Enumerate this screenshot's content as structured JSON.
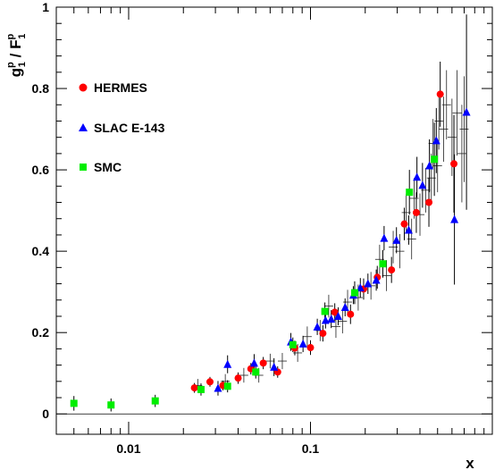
{
  "chart_data": {
    "type": "scatter",
    "title": "",
    "xlabel": "x",
    "ylabel": {
      "base_g": "g",
      "sup_g": "p",
      "sub_g": "1",
      "sep": " / ",
      "base_f": "F",
      "sup_f": "p",
      "sub_f": "1"
    },
    "xscale": "log",
    "xlim": [
      0.004,
      1.0
    ],
    "ylim": [
      -0.05,
      1.0
    ],
    "x_ticks": [
      {
        "value": 0.01,
        "label": "0.01"
      },
      {
        "value": 0.1,
        "label": "0.1"
      }
    ],
    "y_ticks": [
      {
        "value": 0,
        "label": "0"
      },
      {
        "value": 0.2,
        "label": "0.2"
      },
      {
        "value": 0.4,
        "label": "0.4"
      },
      {
        "value": 0.6,
        "label": "0.6"
      },
      {
        "value": 0.8,
        "label": "0.8"
      },
      {
        "value": 1,
        "label": "1"
      }
    ],
    "reference_line_y": 0,
    "legend_position": "left",
    "series": [
      {
        "name": "HERMES",
        "marker": "circle",
        "color": "#ff0000",
        "points": [
          {
            "x": 0.023,
            "y": 0.064,
            "err": 0.012
          },
          {
            "x": 0.028,
            "y": 0.079,
            "err": 0.012
          },
          {
            "x": 0.033,
            "y": 0.07,
            "err": 0.012
          },
          {
            "x": 0.04,
            "y": 0.088,
            "err": 0.014
          },
          {
            "x": 0.047,
            "y": 0.111,
            "err": 0.014
          },
          {
            "x": 0.055,
            "y": 0.125,
            "err": 0.015
          },
          {
            "x": 0.066,
            "y": 0.103,
            "err": 0.014
          },
          {
            "x": 0.082,
            "y": 0.162,
            "err": 0.018
          },
          {
            "x": 0.1,
            "y": 0.163,
            "err": 0.018
          },
          {
            "x": 0.117,
            "y": 0.198,
            "err": 0.02
          },
          {
            "x": 0.136,
            "y": 0.25,
            "err": 0.022
          },
          {
            "x": 0.166,
            "y": 0.245,
            "err": 0.024
          },
          {
            "x": 0.196,
            "y": 0.307,
            "err": 0.026
          },
          {
            "x": 0.233,
            "y": 0.336,
            "err": 0.028
          },
          {
            "x": 0.279,
            "y": 0.354,
            "err": 0.032
          },
          {
            "x": 0.328,
            "y": 0.467,
            "err": 0.04
          },
          {
            "x": 0.382,
            "y": 0.495,
            "err": 0.05
          },
          {
            "x": 0.448,
            "y": 0.52,
            "err": 0.06
          },
          {
            "x": 0.517,
            "y": 0.786,
            "err": 0.08
          },
          {
            "x": 0.615,
            "y": 0.615,
            "err": 0.12
          }
        ]
      },
      {
        "name": "SLAC E-143",
        "marker": "triangle",
        "color": "#0000ff",
        "points": [
          {
            "x": 0.031,
            "y": 0.063,
            "err": 0.018
          },
          {
            "x": 0.035,
            "y": 0.122,
            "err": 0.022
          },
          {
            "x": 0.049,
            "y": 0.125,
            "err": 0.022
          },
          {
            "x": 0.063,
            "y": 0.115,
            "err": 0.022
          },
          {
            "x": 0.078,
            "y": 0.177,
            "err": 0.022
          },
          {
            "x": 0.091,
            "y": 0.172,
            "err": 0.02
          },
          {
            "x": 0.109,
            "y": 0.214,
            "err": 0.02
          },
          {
            "x": 0.121,
            "y": 0.23,
            "err": 0.02
          },
          {
            "x": 0.13,
            "y": 0.233,
            "err": 0.022
          },
          {
            "x": 0.142,
            "y": 0.24,
            "err": 0.022
          },
          {
            "x": 0.155,
            "y": 0.262,
            "err": 0.022
          },
          {
            "x": 0.172,
            "y": 0.292,
            "err": 0.022
          },
          {
            "x": 0.188,
            "y": 0.31,
            "err": 0.024
          },
          {
            "x": 0.207,
            "y": 0.32,
            "err": 0.025
          },
          {
            "x": 0.23,
            "y": 0.329,
            "err": 0.026
          },
          {
            "x": 0.254,
            "y": 0.432,
            "err": 0.03
          },
          {
            "x": 0.297,
            "y": 0.427,
            "err": 0.032
          },
          {
            "x": 0.347,
            "y": 0.452,
            "err": 0.036
          },
          {
            "x": 0.385,
            "y": 0.582,
            "err": 0.05
          },
          {
            "x": 0.413,
            "y": 0.562,
            "err": 0.055
          },
          {
            "x": 0.451,
            "y": 0.61,
            "err": 0.065
          },
          {
            "x": 0.492,
            "y": 0.672,
            "err": 0.08
          },
          {
            "x": 0.619,
            "y": 0.478,
            "err": 0.16
          },
          {
            "x": 0.721,
            "y": 0.742,
            "err": 0.24
          }
        ]
      },
      {
        "name": "SMC",
        "marker": "square",
        "color": "#00ee00",
        "points": [
          {
            "x": 0.005,
            "y": 0.026,
            "err": 0.018
          },
          {
            "x": 0.008,
            "y": 0.022,
            "err": 0.016
          },
          {
            "x": 0.014,
            "y": 0.032,
            "err": 0.015
          },
          {
            "x": 0.025,
            "y": 0.06,
            "err": 0.015
          },
          {
            "x": 0.035,
            "y": 0.068,
            "err": 0.015
          },
          {
            "x": 0.05,
            "y": 0.103,
            "err": 0.016
          },
          {
            "x": 0.08,
            "y": 0.17,
            "err": 0.018
          },
          {
            "x": 0.12,
            "y": 0.252,
            "err": 0.022
          },
          {
            "x": 0.175,
            "y": 0.298,
            "err": 0.028
          },
          {
            "x": 0.25,
            "y": 0.369,
            "err": 0.034
          },
          {
            "x": 0.35,
            "y": 0.545,
            "err": 0.055
          },
          {
            "x": 0.48,
            "y": 0.626,
            "err": 0.09
          }
        ]
      }
    ],
    "background_points": [
      {
        "x": 0.024,
        "y": 0.07,
        "err": 0.016
      },
      {
        "x": 0.034,
        "y": 0.08,
        "err": 0.018
      },
      {
        "x": 0.043,
        "y": 0.095,
        "err": 0.018
      },
      {
        "x": 0.052,
        "y": 0.095,
        "err": 0.018
      },
      {
        "x": 0.06,
        "y": 0.13,
        "err": 0.018
      },
      {
        "x": 0.07,
        "y": 0.13,
        "err": 0.02
      },
      {
        "x": 0.085,
        "y": 0.15,
        "err": 0.022
      },
      {
        "x": 0.096,
        "y": 0.19,
        "err": 0.025
      },
      {
        "x": 0.113,
        "y": 0.205,
        "err": 0.026
      },
      {
        "x": 0.126,
        "y": 0.265,
        "err": 0.028
      },
      {
        "x": 0.138,
        "y": 0.215,
        "err": 0.028
      },
      {
        "x": 0.15,
        "y": 0.228,
        "err": 0.03
      },
      {
        "x": 0.16,
        "y": 0.275,
        "err": 0.03
      },
      {
        "x": 0.183,
        "y": 0.286,
        "err": 0.032
      },
      {
        "x": 0.215,
        "y": 0.315,
        "err": 0.034
      },
      {
        "x": 0.24,
        "y": 0.38,
        "err": 0.036
      },
      {
        "x": 0.262,
        "y": 0.34,
        "err": 0.038
      },
      {
        "x": 0.285,
        "y": 0.41,
        "err": 0.04
      },
      {
        "x": 0.31,
        "y": 0.4,
        "err": 0.042
      },
      {
        "x": 0.336,
        "y": 0.495,
        "err": 0.046
      },
      {
        "x": 0.36,
        "y": 0.43,
        "err": 0.05
      },
      {
        "x": 0.372,
        "y": 0.53,
        "err": 0.05
      },
      {
        "x": 0.4,
        "y": 0.49,
        "err": 0.052
      },
      {
        "x": 0.43,
        "y": 0.55,
        "err": 0.055
      },
      {
        "x": 0.462,
        "y": 0.58,
        "err": 0.06
      },
      {
        "x": 0.472,
        "y": 0.665,
        "err": 0.06
      },
      {
        "x": 0.5,
        "y": 0.61,
        "err": 0.065
      },
      {
        "x": 0.508,
        "y": 0.72,
        "err": 0.07
      },
      {
        "x": 0.54,
        "y": 0.7,
        "err": 0.08
      },
      {
        "x": 0.56,
        "y": 0.76,
        "err": 0.085
      },
      {
        "x": 0.6,
        "y": 0.68,
        "err": 0.095
      },
      {
        "x": 0.64,
        "y": 0.74,
        "err": 0.105
      },
      {
        "x": 0.68,
        "y": 0.64,
        "err": 0.12
      },
      {
        "x": 0.7,
        "y": 0.7,
        "err": 0.13
      }
    ]
  }
}
